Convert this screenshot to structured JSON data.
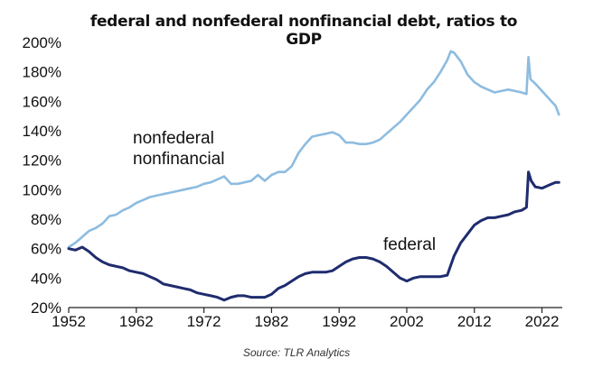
{
  "colors": {
    "nonfederal": "#8DBCE0",
    "federal": "#1F2C6E",
    "axis": "#222222"
  },
  "chart_data": {
    "type": "line",
    "title": "federal and nonfederal nonfinancial debt, ratios to GDP",
    "source": "Source: TLR Analytics",
    "xlim": [
      1952,
      2025
    ],
    "ylim": [
      20,
      200
    ],
    "x_ticks": [
      {
        "value": 1952,
        "label": "1952"
      },
      {
        "value": 1962,
        "label": "1962"
      },
      {
        "value": 1972,
        "label": "1972"
      },
      {
        "value": 1982,
        "label": "1982"
      },
      {
        "value": 1992,
        "label": "1992"
      },
      {
        "value": 2002,
        "label": "2002"
      },
      {
        "value": 2012,
        "label": "2012"
      },
      {
        "value": 2022,
        "label": "2022"
      }
    ],
    "y_ticks": [
      {
        "value": 20,
        "label": "20%"
      },
      {
        "value": 40,
        "label": "40%"
      },
      {
        "value": 60,
        "label": "60%"
      },
      {
        "value": 80,
        "label": "80%"
      },
      {
        "value": 100,
        "label": "100%"
      },
      {
        "value": 120,
        "label": "120%"
      },
      {
        "value": 140,
        "label": "140%"
      },
      {
        "value": 160,
        "label": "160%"
      },
      {
        "value": 180,
        "label": "180%"
      },
      {
        "value": 200,
        "label": "200%"
      }
    ],
    "series": [
      {
        "name": "nonfederal nonfinancial",
        "label_lines": [
          "nonfederal",
          "nonfinancial"
        ],
        "color": "#8DBCE0",
        "x": [
          1952,
          1953,
          1954,
          1955,
          1956,
          1957,
          1958,
          1959,
          1960,
          1961,
          1962,
          1963,
          1964,
          1965,
          1966,
          1967,
          1968,
          1969,
          1970,
          1971,
          1972,
          1973,
          1974,
          1975,
          1976,
          1977,
          1978,
          1979,
          1980,
          1981,
          1982,
          1983,
          1984,
          1985,
          1986,
          1987,
          1988,
          1989,
          1990,
          1991,
          1992,
          1993,
          1994,
          1995,
          1996,
          1997,
          1998,
          1999,
          2000,
          2001,
          2002,
          2003,
          2004,
          2005,
          2006,
          2007,
          2008,
          2008.5,
          2009,
          2010,
          2011,
          2012,
          2013,
          2014,
          2015,
          2016,
          2017,
          2018,
          2019,
          2019.7,
          2020,
          2020.3,
          2021,
          2022,
          2023,
          2024,
          2024.5
        ],
        "y": [
          61,
          64,
          68,
          72,
          74,
          77,
          82,
          83,
          86,
          88,
          91,
          93,
          95,
          96,
          97,
          98,
          99,
          100,
          101,
          102,
          104,
          105,
          107,
          109,
          104,
          104,
          105,
          106,
          110,
          106,
          110,
          112,
          112,
          116,
          125,
          131,
          136,
          137,
          138,
          139,
          137,
          132,
          132,
          131,
          131,
          132,
          134,
          138,
          142,
          146,
          151,
          156,
          161,
          168,
          173,
          180,
          188,
          194,
          193,
          187,
          178,
          173,
          170,
          168,
          166,
          167,
          168,
          167,
          166,
          165,
          190,
          175,
          172,
          167,
          162,
          157,
          151
        ]
      },
      {
        "name": "federal",
        "label_lines": [
          "federal"
        ],
        "color": "#1F2C6E",
        "x": [
          1952,
          1953,
          1954,
          1955,
          1956,
          1957,
          1958,
          1959,
          1960,
          1961,
          1962,
          1963,
          1964,
          1965,
          1966,
          1967,
          1968,
          1969,
          1970,
          1971,
          1972,
          1973,
          1974,
          1975,
          1976,
          1977,
          1978,
          1979,
          1980,
          1981,
          1982,
          1983,
          1984,
          1985,
          1986,
          1987,
          1988,
          1989,
          1990,
          1991,
          1992,
          1993,
          1994,
          1995,
          1996,
          1997,
          1998,
          1999,
          2000,
          2001,
          2002,
          2003,
          2004,
          2005,
          2006,
          2007,
          2008,
          2009,
          2010,
          2011,
          2012,
          2013,
          2014,
          2015,
          2016,
          2017,
          2018,
          2019,
          2019.7,
          2020,
          2020.4,
          2021,
          2022,
          2023,
          2024,
          2024.5
        ],
        "y": [
          60,
          59,
          61,
          58,
          54,
          51,
          49,
          48,
          47,
          45,
          44,
          43,
          41,
          39,
          36,
          35,
          34,
          33,
          32,
          30,
          29,
          28,
          27,
          25,
          27,
          28,
          28,
          27,
          27,
          27,
          29,
          33,
          35,
          38,
          41,
          43,
          44,
          44,
          44,
          45,
          48,
          51,
          53,
          54,
          54,
          53,
          51,
          48,
          44,
          40,
          38,
          40,
          41,
          41,
          41,
          41,
          42,
          55,
          64,
          70,
          76,
          79,
          81,
          81,
          82,
          83,
          85,
          86,
          88,
          112,
          106,
          102,
          101,
          103,
          105,
          105
        ]
      }
    ]
  }
}
